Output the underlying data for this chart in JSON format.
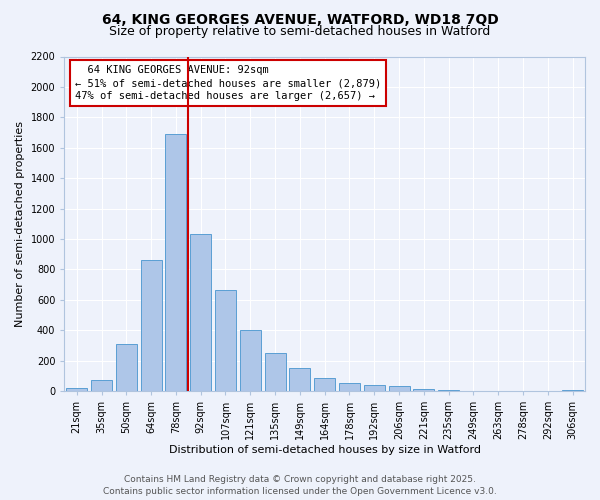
{
  "title_line1": "64, KING GEORGES AVENUE, WATFORD, WD18 7QD",
  "title_line2": "Size of property relative to semi-detached houses in Watford",
  "xlabel": "Distribution of semi-detached houses by size in Watford",
  "ylabel": "Number of semi-detached properties",
  "categories": [
    "21sqm",
    "35sqm",
    "50sqm",
    "64sqm",
    "78sqm",
    "92sqm",
    "107sqm",
    "121sqm",
    "135sqm",
    "149sqm",
    "164sqm",
    "178sqm",
    "192sqm",
    "206sqm",
    "221sqm",
    "235sqm",
    "249sqm",
    "263sqm",
    "278sqm",
    "292sqm",
    "306sqm"
  ],
  "values": [
    20,
    75,
    310,
    860,
    1690,
    1030,
    665,
    400,
    248,
    150,
    85,
    50,
    40,
    35,
    15,
    5,
    2,
    1,
    1,
    1,
    10
  ],
  "bar_color": "#aec6e8",
  "bar_edge_color": "#5a9fd4",
  "vline_index": 5,
  "vline_color": "#cc0000",
  "annotation_title": "64 KING GEORGES AVENUE: 92sqm",
  "annotation_line1": "← 51% of semi-detached houses are smaller (2,879)",
  "annotation_line2": "47% of semi-detached houses are larger (2,657) →",
  "annotation_box_color": "#cc0000",
  "ylim": [
    0,
    2200
  ],
  "yticks": [
    0,
    200,
    400,
    600,
    800,
    1000,
    1200,
    1400,
    1600,
    1800,
    2000,
    2200
  ],
  "footnote_line1": "Contains HM Land Registry data © Crown copyright and database right 2025.",
  "footnote_line2": "Contains public sector information licensed under the Open Government Licence v3.0.",
  "bg_color": "#eef2fb",
  "plot_bg_color": "#eef2fb",
  "grid_color": "#ffffff",
  "title_fontsize": 10,
  "subtitle_fontsize": 9,
  "label_fontsize": 8,
  "tick_fontsize": 7,
  "annot_fontsize": 7.5,
  "footnote_fontsize": 6.5
}
